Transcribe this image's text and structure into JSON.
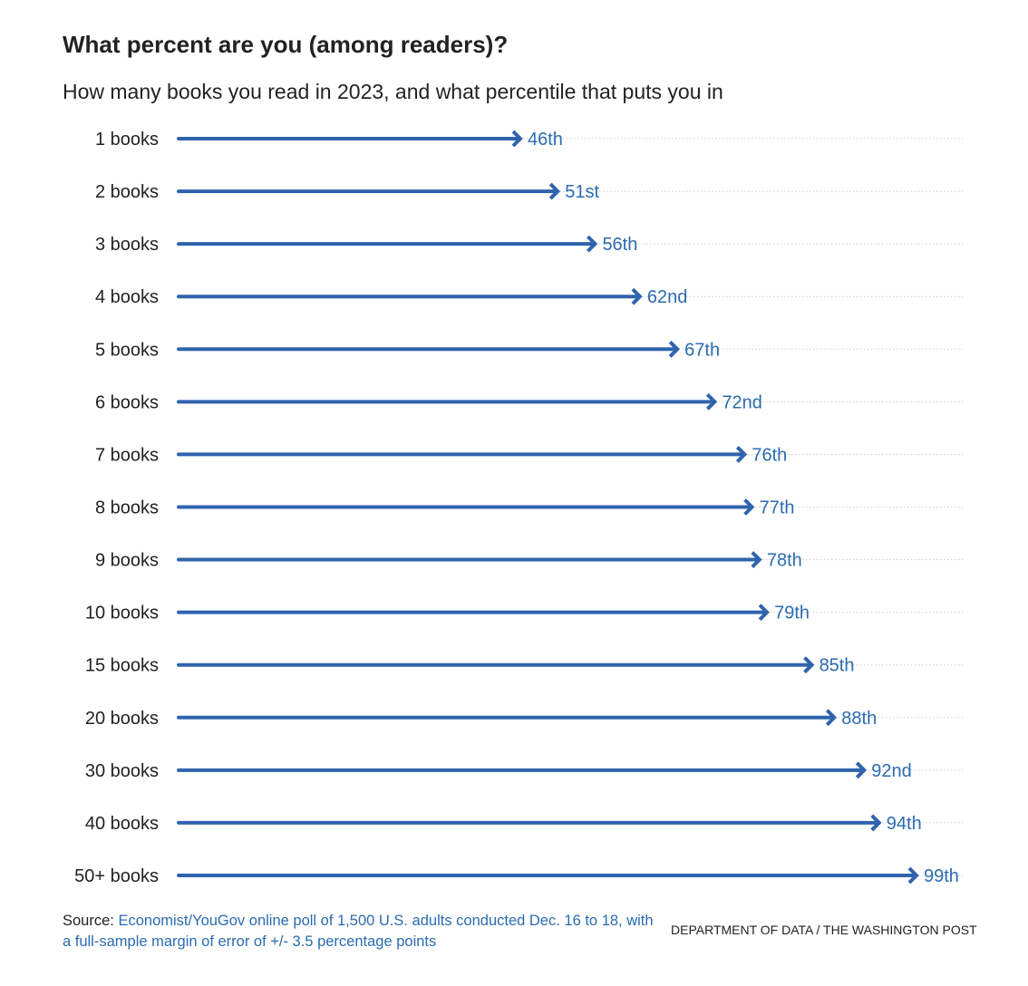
{
  "title": "What percent are you (among readers)?",
  "subtitle": "How many books you read in 2023, and what percentile that puts you in",
  "source": {
    "label": "Source:",
    "text": "Economist/YouGov online poll of 1,500 U.S. adults conducted Dec. 16 to 18, with a full-sample margin of error of +/- 3.5 percentage points"
  },
  "credit": "DEPARTMENT OF DATA / THE WASHINGTON POST",
  "colors": {
    "arrow": "#3063ad",
    "value_label": "#2b6cb0",
    "grid": "#cccccc",
    "text": "#222222"
  },
  "chart_data": {
    "type": "bar",
    "orientation": "horizontal",
    "mark": "arrow",
    "categories": [
      "1 books",
      "2 books",
      "3 books",
      "4 books",
      "5 books",
      "6 books",
      "7 books",
      "8 books",
      "9 books",
      "10 books",
      "15 books",
      "20 books",
      "30 books",
      "40 books",
      "50+ books"
    ],
    "values": [
      46,
      51,
      56,
      62,
      67,
      72,
      76,
      77,
      78,
      79,
      85,
      88,
      92,
      94,
      99
    ],
    "value_labels": [
      "46th",
      "51st",
      "56th",
      "62nd",
      "67th",
      "72nd",
      "76th",
      "77th",
      "78th",
      "79th",
      "85th",
      "88th",
      "92nd",
      "94th",
      "99th"
    ],
    "xlim": [
      0,
      100
    ],
    "grid": "dotted row guides",
    "title": "What percent are you (among readers)?",
    "subtitle": "How many books you read in 2023, and what percentile that puts you in"
  }
}
